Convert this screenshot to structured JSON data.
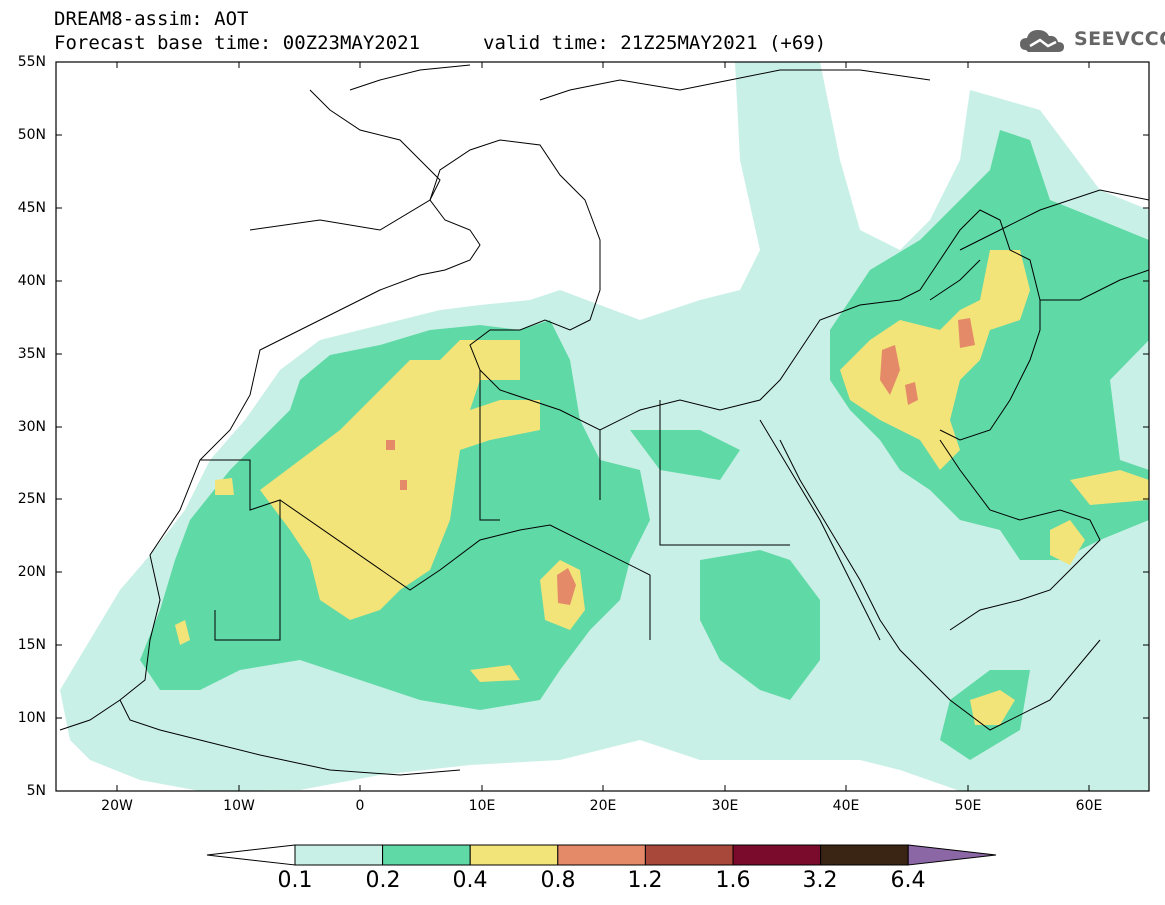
{
  "header": {
    "title_line1": "DREAM8-assim: AOT",
    "title_line2": "Forecast base time: 00Z23MAY2021",
    "valid_time": "valid time: 21Z25MAY2021 (+69)",
    "logo_text": "SEEVCCC"
  },
  "map": {
    "lat_labels": [
      "55N",
      "50N",
      "45N",
      "40N",
      "35N",
      "30N",
      "25N",
      "20N",
      "15N",
      "10N",
      "5N"
    ],
    "lon_labels": [
      "20W",
      "10W",
      "0",
      "10E",
      "20E",
      "30E",
      "40E",
      "50E",
      "60E"
    ],
    "lon_range": [
      -25,
      65
    ],
    "lat_range": [
      5,
      55
    ]
  },
  "legend": {
    "labels": [
      "0.1",
      "0.2",
      "0.4",
      "0.8",
      "1.2",
      "1.6",
      "3.2",
      "6.4"
    ],
    "colors": [
      "#c9f0e6",
      "#5fd9a6",
      "#f2e479",
      "#e48a68",
      "#a8483a",
      "#7a0b2c",
      "#3a2414",
      "#8c67a6"
    ]
  }
}
